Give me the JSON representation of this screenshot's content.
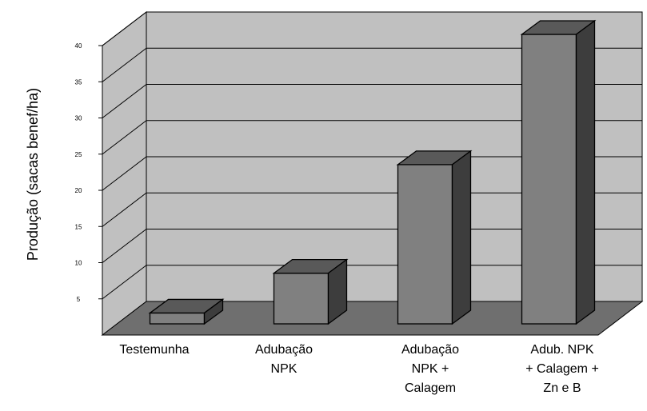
{
  "chart_data": {
    "type": "bar",
    "title": "",
    "xlabel": "",
    "ylabel": "Produção (sacas benef/ha)",
    "ylim": [
      0,
      40
    ],
    "yticks": [
      "5",
      "10",
      "15",
      "20",
      "25",
      "30",
      "35",
      "40"
    ],
    "grid": true,
    "legend": "none",
    "style": "3d",
    "categories": [
      "Testemunha",
      "Adubação NPK",
      "Adubação NPK + Calagem",
      "Adub. NPK + Calagem + Zn e B"
    ],
    "category_lines": [
      [
        "Testemunha"
      ],
      [
        "Adubação",
        "NPK"
      ],
      [
        "Adubação",
        "NPK  +",
        "Calagem"
      ],
      [
        "Adub. NPK",
        "+ Calagem  +",
        "Zn e B"
      ]
    ],
    "values": [
      1.5,
      7,
      22,
      40
    ],
    "colors": {
      "back_wall": "#c0c0c0",
      "floor": "#6f6f6f",
      "bar_front": "#808080",
      "bar_top": "#595959",
      "bar_side": "#3d3d3d"
    }
  }
}
